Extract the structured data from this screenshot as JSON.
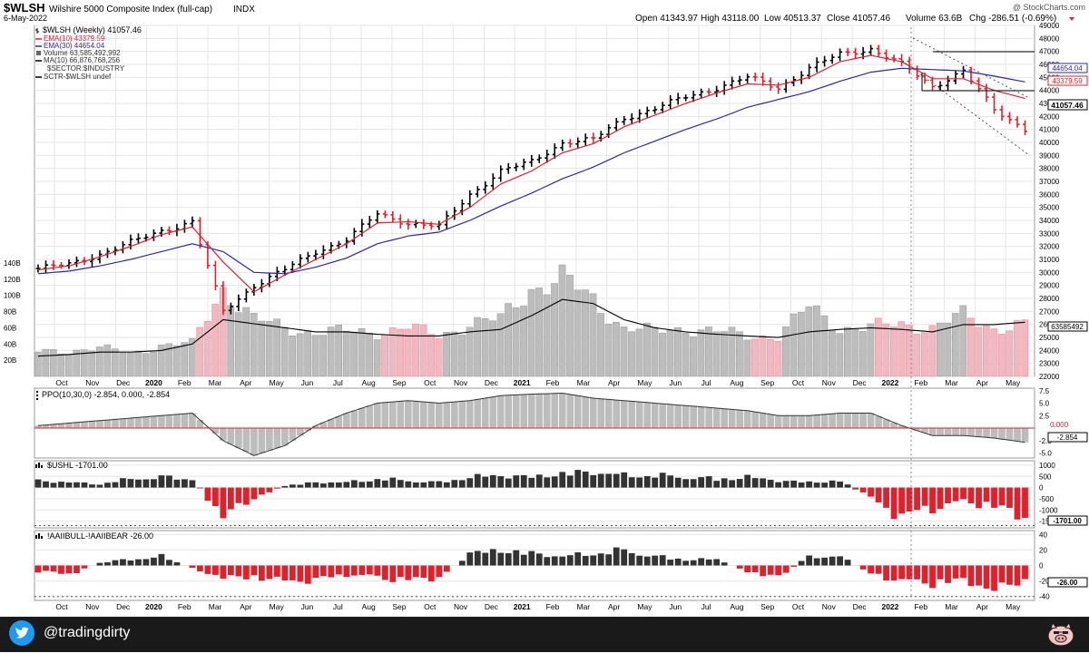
{
  "header": {
    "symbol": "$WLSH",
    "name": "Wilshire 5000 Composite Index (full-cap)",
    "exchange": "INDX",
    "date": "6-May-2022",
    "watermark": "@ StockCharts.com",
    "open_label": "Open 41343.97",
    "high_label": "High 43118.00",
    "low_label": "Low 40513.37",
    "close_label": "Close 41057.46",
    "volume_label": "Volume 63.6B",
    "chg_label": "Chg -286.51 (-0.69%)"
  },
  "legend": {
    "price": "$WLSH (Weekly) 41057.46",
    "ema10": "EMA(10) 43379.59",
    "ema30": "EMA(30) 44654.04",
    "volume": "Volume 63,585,492,992",
    "ma10": "MA(10) 66,876,768,256",
    "sector": "$SECTOR:$INDUSTRY",
    "sctr": "SCTR-$WLSH undef"
  },
  "right_labels": {
    "ema30": "44654.04",
    "ema10": "43379.59",
    "close": "41057.46",
    "volume": "63585492",
    "ppo": "-2.854",
    "ppo_zero": "0.000",
    "ushl": "-1701.00",
    "aaii": "-26.00"
  },
  "price_axis": [
    "49000",
    "48000",
    "47000",
    "46000",
    "45000",
    "44000",
    "43000",
    "42000",
    "41000",
    "40000",
    "39000",
    "38000",
    "37000",
    "36000",
    "35000",
    "34000",
    "33000",
    "32000",
    "31000",
    "30000",
    "29000",
    "28000",
    "27000",
    "26000",
    "25000",
    "24000",
    "23000",
    "22000"
  ],
  "volume_axis": [
    "140B",
    "120B",
    "100B",
    "80B",
    "60B",
    "40B",
    "20B"
  ],
  "ppo_axis": [
    "7.5",
    "5.0",
    "2.5",
    "-2.5",
    "-5.0"
  ],
  "ushl_axis": [
    "1000",
    "500",
    "0",
    "-500",
    "-1000",
    "-1500"
  ],
  "aaii_axis": [
    "40",
    "20",
    "0",
    "-20",
    "-40"
  ],
  "month_labels": [
    "Oct",
    "Nov",
    "Dec",
    "2020",
    "Feb",
    "Mar",
    "Apr",
    "May",
    "Jun",
    "Jul",
    "Aug",
    "Sep",
    "Oct",
    "Nov",
    "Dec",
    "2021",
    "Feb",
    "Mar",
    "Apr",
    "May",
    "Jun",
    "Jul",
    "Aug",
    "Sep",
    "Oct",
    "Nov",
    "Dec",
    "2022",
    "Feb",
    "Mar",
    "Apr",
    "May"
  ],
  "panels": {
    "ppo": "PPO(10,30,0) -2.854, 0.000, -2.854",
    "ushl": "$USHL -1701.00",
    "aaii": "!AAIIBULL-!AAIIBEAR -26.00"
  },
  "footer": {
    "handle": "@tradingdirty"
  },
  "colors": {
    "up": "#000000",
    "down": "#e0202a",
    "ema10": "#e02030",
    "ema30": "#2a2aa0",
    "vol_up": "#bdbdbd",
    "vol_down": "#f0b8c0",
    "grid": "#e6e6e6",
    "footer": "#1a1a1a"
  },
  "chart_data": [
    {
      "type": "line",
      "title": "$WLSH (Weekly) 41057.46",
      "x": [
        "2019-09",
        "2019-10",
        "2019-11",
        "2019-12",
        "2020-01",
        "2020-02",
        "2020-03",
        "2020-04",
        "2020-05",
        "2020-06",
        "2020-07",
        "2020-08",
        "2020-09",
        "2020-10",
        "2020-11",
        "2020-12",
        "2021-01",
        "2021-02",
        "2021-03",
        "2021-04",
        "2021-05",
        "2021-06",
        "2021-07",
        "2021-08",
        "2021-09",
        "2021-10",
        "2021-11",
        "2021-12",
        "2022-01",
        "2022-02",
        "2022-03",
        "2022-04",
        "2022-05"
      ],
      "series": [
        {
          "name": "$WLSH (Weekly)",
          "values": [
            30300,
            30600,
            31400,
            32300,
            33200,
            33900,
            27000,
            29000,
            30200,
            31600,
            32500,
            34500,
            33800,
            33500,
            36000,
            37800,
            38500,
            40000,
            40200,
            41900,
            42600,
            43500,
            44200,
            45000,
            44200,
            45700,
            46800,
            47200,
            46000,
            44300,
            45500,
            42500,
            41057
          ]
        },
        {
          "name": "EMA(10)",
          "values": [
            30200,
            30500,
            31200,
            32000,
            32900,
            33500,
            30800,
            28500,
            29800,
            31000,
            32200,
            33800,
            33900,
            33700,
            35000,
            36800,
            37800,
            39200,
            39900,
            41200,
            42100,
            43000,
            43800,
            44500,
            44400,
            45000,
            46200,
            46700,
            46200,
            44900,
            44900,
            44000,
            43380
          ]
        },
        {
          "name": "EMA(30)",
          "values": [
            29900,
            30100,
            30500,
            31000,
            31600,
            32200,
            31600,
            30000,
            29900,
            30400,
            31100,
            32200,
            32800,
            33100,
            34000,
            35100,
            36100,
            37200,
            38100,
            39200,
            40100,
            41000,
            41800,
            42700,
            43300,
            43900,
            44700,
            45400,
            45700,
            45600,
            45500,
            45100,
            44654
          ]
        }
      ],
      "ylim": [
        22000,
        49000
      ]
    },
    {
      "type": "bar",
      "title": "Volume 63,585,492,992",
      "x": [
        "2019-09",
        "2019-10",
        "2019-11",
        "2019-12",
        "2020-01",
        "2020-02",
        "2020-03",
        "2020-04",
        "2020-05",
        "2020-06",
        "2020-07",
        "2020-08",
        "2020-09",
        "2020-10",
        "2020-11",
        "2020-12",
        "2021-01",
        "2021-02",
        "2021-03",
        "2021-04",
        "2021-05",
        "2021-06",
        "2021-07",
        "2021-08",
        "2021-09",
        "2021-10",
        "2021-11",
        "2021-12",
        "2022-01",
        "2022-02",
        "2022-03",
        "2022-04",
        "2022-05"
      ],
      "series": [
        {
          "name": "Volume",
          "values": [
            30,
            32,
            35,
            28,
            38,
            40,
            110,
            70,
            60,
            55,
            55,
            55,
            60,
            50,
            65,
            70,
            110,
            120,
            95,
            60,
            55,
            60,
            55,
            50,
            50,
            85,
            60,
            60,
            65,
            60,
            75,
            60,
            63.6
          ]
        },
        {
          "name": "MA(10)",
          "values": [
            25,
            27,
            30,
            30,
            32,
            40,
            70,
            65,
            60,
            55,
            55,
            52,
            50,
            50,
            55,
            58,
            75,
            95,
            90,
            70,
            60,
            55,
            52,
            50,
            48,
            55,
            58,
            60,
            58,
            55,
            64,
            64,
            66.9
          ]
        }
      ],
      "ylabel": "Volume",
      "ylim": [
        0,
        140
      ]
    },
    {
      "type": "area",
      "title": "PPO(10,30,0) -2.854, 0.000, -2.854",
      "x": [
        "2019-09",
        "2019-10",
        "2019-11",
        "2019-12",
        "2020-01",
        "2020-02",
        "2020-03",
        "2020-04",
        "2020-05",
        "2020-06",
        "2020-07",
        "2020-08",
        "2020-09",
        "2020-10",
        "2020-11",
        "2020-12",
        "2021-01",
        "2021-02",
        "2021-03",
        "2021-04",
        "2021-05",
        "2021-06",
        "2021-07",
        "2021-08",
        "2021-09",
        "2021-10",
        "2021-11",
        "2021-12",
        "2022-01",
        "2022-02",
        "2022-03",
        "2022-04",
        "2022-05"
      ],
      "series": [
        {
          "name": "PPO",
          "values": [
            0.5,
            1.0,
            1.5,
            2.0,
            2.5,
            3.0,
            -2.5,
            -5.5,
            -3.5,
            0.5,
            3.0,
            5.0,
            5.5,
            5.0,
            5.5,
            6.5,
            6.8,
            7.0,
            6.0,
            5.5,
            5.0,
            4.5,
            4.0,
            3.5,
            2.5,
            2.5,
            3.0,
            3.0,
            0.5,
            -1.5,
            -1.5,
            -2.0,
            -2.85
          ]
        }
      ],
      "ylim": [
        -6,
        8
      ]
    },
    {
      "type": "bar",
      "title": "$USHL -1701.00",
      "x": [
        "2019-09",
        "2019-10",
        "2019-11",
        "2019-12",
        "2020-01",
        "2020-02",
        "2020-03",
        "2020-04",
        "2020-05",
        "2020-06",
        "2020-07",
        "2020-08",
        "2020-09",
        "2020-10",
        "2020-11",
        "2020-12",
        "2021-01",
        "2021-02",
        "2021-03",
        "2021-04",
        "2021-05",
        "2021-06",
        "2021-07",
        "2021-08",
        "2021-09",
        "2021-10",
        "2021-11",
        "2021-12",
        "2022-01",
        "2022-02",
        "2022-03",
        "2022-04",
        "2022-05"
      ],
      "series": [
        {
          "name": "$USHL",
          "values": [
            400,
            300,
            200,
            500,
            600,
            500,
            -1700,
            -600,
            100,
            300,
            300,
            500,
            400,
            300,
            600,
            700,
            600,
            800,
            900,
            700,
            700,
            600,
            500,
            600,
            400,
            300,
            400,
            -600,
            -1700,
            -1200,
            -800,
            -1100,
            -1701
          ]
        }
      ],
      "ylim": [
        -1800,
        1200
      ]
    },
    {
      "type": "bar",
      "title": "!AAIIBULL-!AAIIBEAR -26.00",
      "x": [
        "2019-09",
        "2019-10",
        "2019-11",
        "2019-12",
        "2020-01",
        "2020-02",
        "2020-03",
        "2020-04",
        "2020-05",
        "2020-06",
        "2020-07",
        "2020-08",
        "2020-09",
        "2020-10",
        "2020-11",
        "2020-12",
        "2021-01",
        "2021-02",
        "2021-03",
        "2021-04",
        "2021-05",
        "2021-06",
        "2021-07",
        "2021-08",
        "2021-09",
        "2021-10",
        "2021-11",
        "2021-12",
        "2022-01",
        "2022-02",
        "2022-03",
        "2022-04",
        "2022-05"
      ],
      "series": [
        {
          "name": "!AAIIBULL-!AAIIBEAR",
          "values": [
            -10,
            -15,
            5,
            10,
            15,
            -5,
            -20,
            -20,
            -25,
            -25,
            -15,
            -20,
            -25,
            -20,
            20,
            25,
            20,
            15,
            20,
            25,
            15,
            10,
            10,
            -10,
            -20,
            15,
            15,
            -15,
            -25,
            -30,
            -25,
            -40,
            -26
          ]
        }
      ],
      "ylim": [
        -45,
        45
      ]
    }
  ]
}
